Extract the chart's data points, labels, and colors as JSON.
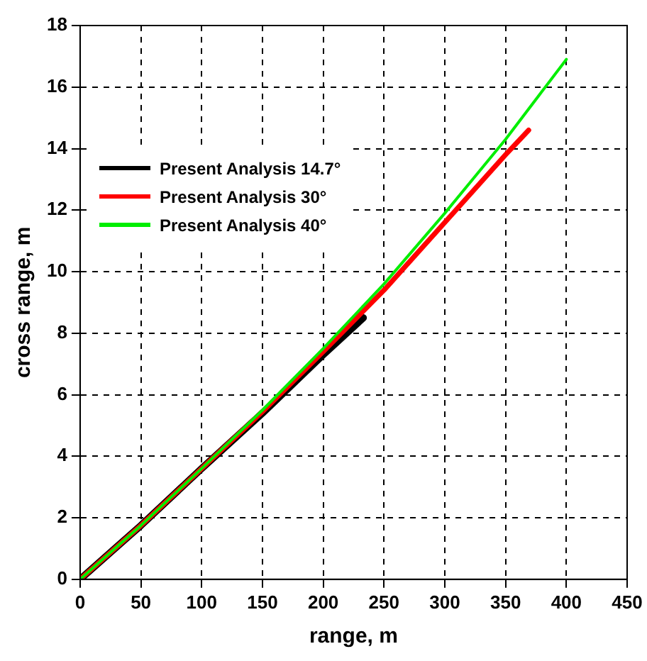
{
  "chart_data": {
    "type": "line",
    "xlabel": "range, m",
    "ylabel": "cross range, m",
    "xlim": [
      0,
      450
    ],
    "xticks": [
      0,
      50,
      100,
      150,
      200,
      250,
      300,
      350,
      400,
      450
    ],
    "ylim": [
      0,
      18
    ],
    "yticks": [
      0,
      2,
      4,
      6,
      8,
      10,
      12,
      14,
      16,
      18
    ],
    "grid": true,
    "legend": "top left",
    "marker": "none",
    "line_style": "solid",
    "series": [
      {
        "name": "Present Analysis 14.7°",
        "color": "#000000",
        "x": [
          0,
          50,
          100,
          150,
          200,
          233
        ],
        "values": [
          0,
          1.75,
          3.6,
          5.4,
          7.3,
          8.5
        ]
      },
      {
        "name": "Present Analysis 30°",
        "color": "#ff0000",
        "x": [
          0,
          50,
          100,
          150,
          200,
          250,
          300,
          350,
          369
        ],
        "values": [
          0,
          1.75,
          3.6,
          5.45,
          7.4,
          9.4,
          11.6,
          13.8,
          14.6
        ]
      },
      {
        "name": "Present Analysis 40°",
        "color": "#00ee00",
        "x": [
          0,
          50,
          100,
          150,
          200,
          250,
          300,
          350,
          400
        ],
        "values": [
          0,
          1.75,
          3.6,
          5.5,
          7.5,
          9.6,
          11.9,
          14.3,
          16.9
        ]
      }
    ]
  }
}
